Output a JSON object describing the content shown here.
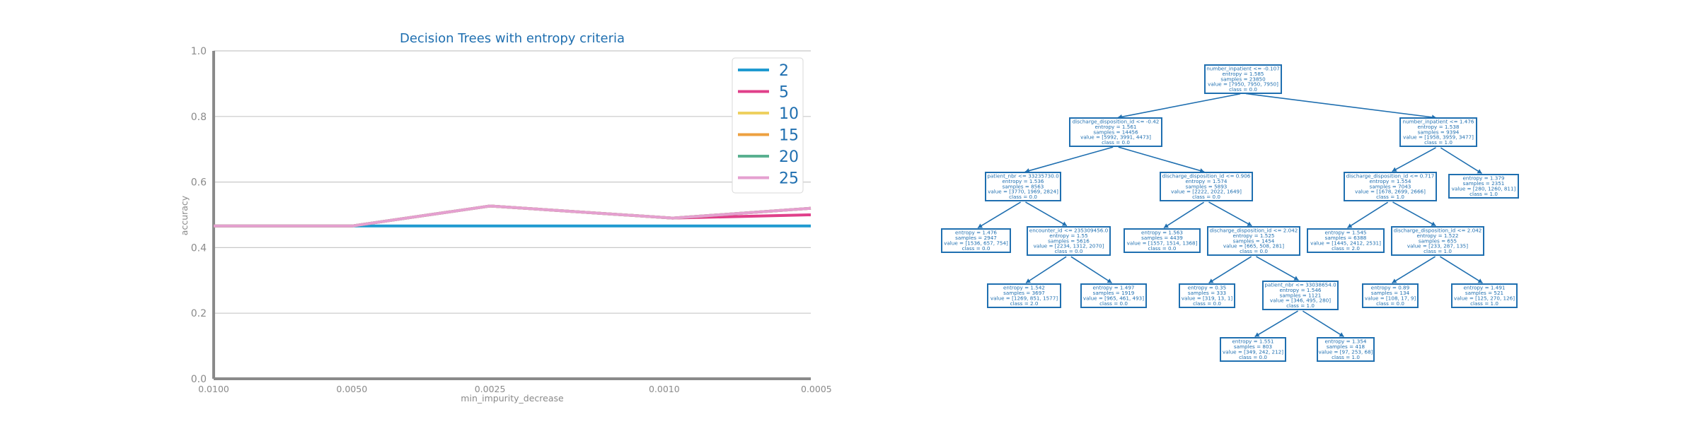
{
  "colors": {
    "title": "#1f6fb0",
    "axis": "#8a8a8a",
    "grid": "#c8c8c8",
    "tree_node": "#1f6fb0",
    "legend_text": "#1f6fb0"
  },
  "chart_data": {
    "type": "line",
    "title": "Decision Trees with entropy criteria",
    "xlabel": "min_impurity_decrease",
    "ylabel": "accuracy",
    "ylim": [
      0,
      1
    ],
    "y_ticks": [
      "0.0",
      "0.2",
      "0.4",
      "0.6",
      "0.8",
      "1.0"
    ],
    "x_ticks": [
      "0.0100",
      "0.0050",
      "0.0025",
      "0.0010",
      "0.0005"
    ],
    "x_values": [
      0.01,
      0.005,
      0.0025,
      0.001,
      0.0005
    ],
    "grid": true,
    "legend_position": "top-right",
    "series": [
      {
        "name": "2",
        "color": "#1f9ad0",
        "values": [
          0.466,
          0.466,
          0.466,
          0.466,
          0.466
        ]
      },
      {
        "name": "5",
        "color": "#e0408a",
        "values": [
          0.466,
          0.466,
          0.527,
          0.49,
          0.5
        ]
      },
      {
        "name": "10",
        "color": "#eed060",
        "values": [
          0.466,
          0.466,
          0.527,
          0.49,
          0.52
        ]
      },
      {
        "name": "15",
        "color": "#eda040",
        "values": [
          0.466,
          0.466,
          0.527,
          0.49,
          0.52
        ]
      },
      {
        "name": "20",
        "color": "#5ab090",
        "values": [
          0.466,
          0.466,
          0.527,
          0.49,
          0.52
        ]
      },
      {
        "name": "25",
        "color": "#e5a0d0",
        "values": [
          0.466,
          0.466,
          0.527,
          0.49,
          0.52
        ]
      }
    ]
  },
  "tree": {
    "nodes": [
      {
        "id": "n0",
        "lines": [
          "number_inpatient <= -0.107",
          "entropy = 1.585",
          "samples = 23850",
          "value = [7950, 7950, 7950]",
          "class = 0.0"
        ]
      },
      {
        "id": "n1",
        "lines": [
          "discharge_disposition_id <= -0.42",
          "entropy = 1.561",
          "samples = 14456",
          "value = [5992, 3991, 4473]",
          "class = 0.0"
        ]
      },
      {
        "id": "n2",
        "lines": [
          "number_inpatient <= 1.476",
          "entropy = 1.538",
          "samples = 9394",
          "value = [1958, 3959, 3477]",
          "class = 1.0"
        ]
      },
      {
        "id": "n3",
        "lines": [
          "patient_nbr <= 33235730.0",
          "entropy = 1.536",
          "samples = 8563",
          "value = [3770, 1969, 2824]",
          "class = 0.0"
        ]
      },
      {
        "id": "n4",
        "lines": [
          "discharge_disposition_id <= 0.906",
          "entropy = 1.574",
          "samples = 5893",
          "value = [2222, 2022, 1649]",
          "class = 0.0"
        ]
      },
      {
        "id": "n5",
        "lines": [
          "discharge_disposition_id <= 0.717",
          "entropy = 1.554",
          "samples = 7043",
          "value = [1678, 2699, 2666]",
          "class = 1.0"
        ]
      },
      {
        "id": "n6",
        "lines": [
          "entropy = 1.379",
          "samples = 2351",
          "value = [280, 1260, 811]",
          "class = 1.0"
        ]
      },
      {
        "id": "n7",
        "lines": [
          "entropy = 1.476",
          "samples = 2947",
          "value = [1536, 657, 754]",
          "class = 0.0"
        ]
      },
      {
        "id": "n8",
        "lines": [
          "encounter_id <= 235309456.0",
          "entropy = 1.55",
          "samples = 5616",
          "value = [2234, 1312, 2070]",
          "class = 0.0"
        ]
      },
      {
        "id": "n9",
        "lines": [
          "entropy = 1.563",
          "samples = 4439",
          "value = [1557, 1514, 1368]",
          "class = 0.0"
        ]
      },
      {
        "id": "n10",
        "lines": [
          "discharge_disposition_id <= 2.042",
          "entropy = 1.525",
          "samples = 1454",
          "value = [665, 508, 281]",
          "class = 0.0"
        ]
      },
      {
        "id": "n11",
        "lines": [
          "entropy = 1.545",
          "samples = 6388",
          "value = [1445, 2412, 2531]",
          "class = 2.0"
        ]
      },
      {
        "id": "n12",
        "lines": [
          "discharge_disposition_id <= 2.042",
          "entropy = 1.522",
          "samples = 655",
          "value = [233, 287, 135]",
          "class = 1.0"
        ]
      },
      {
        "id": "n13",
        "lines": [
          "entropy = 1.542",
          "samples = 3697",
          "value = [1269, 851, 1577]",
          "class = 2.0"
        ]
      },
      {
        "id": "n14",
        "lines": [
          "entropy = 1.497",
          "samples = 1919",
          "value = [965, 461, 493]",
          "class = 0.0"
        ]
      },
      {
        "id": "n15",
        "lines": [
          "entropy = 0.35",
          "samples = 333",
          "value = [319, 13, 1]",
          "class = 0.0"
        ]
      },
      {
        "id": "n16",
        "lines": [
          "patient_nbr <= 33038654.0",
          "entropy = 1.546",
          "samples = 1121",
          "value = [346, 495, 280]",
          "class = 1.0"
        ]
      },
      {
        "id": "n17",
        "lines": [
          "entropy = 0.89",
          "samples = 134",
          "value = [108, 17, 9]",
          "class = 0.0"
        ]
      },
      {
        "id": "n18",
        "lines": [
          "entropy = 1.491",
          "samples = 521",
          "value = [125, 270, 126]",
          "class = 1.0"
        ]
      },
      {
        "id": "n19",
        "lines": [
          "entropy = 1.551",
          "samples = 803",
          "value = [349, 242, 212]",
          "class = 0.0"
        ]
      },
      {
        "id": "n20",
        "lines": [
          "entropy = 1.354",
          "samples = 418",
          "value = [97, 253, 68]",
          "class = 1.0"
        ]
      }
    ],
    "edges": [
      [
        "n0",
        "n1"
      ],
      [
        "n0",
        "n2"
      ],
      [
        "n1",
        "n3"
      ],
      [
        "n1",
        "n4"
      ],
      [
        "n2",
        "n5"
      ],
      [
        "n2",
        "n6"
      ],
      [
        "n3",
        "n7"
      ],
      [
        "n3",
        "n8"
      ],
      [
        "n4",
        "n9"
      ],
      [
        "n4",
        "n10"
      ],
      [
        "n5",
        "n11"
      ],
      [
        "n5",
        "n12"
      ],
      [
        "n8",
        "n13"
      ],
      [
        "n8",
        "n14"
      ],
      [
        "n10",
        "n15"
      ],
      [
        "n10",
        "n16"
      ],
      [
        "n12",
        "n17"
      ],
      [
        "n12",
        "n18"
      ],
      [
        "n16",
        "n19"
      ],
      [
        "n16",
        "n20"
      ]
    ]
  }
}
